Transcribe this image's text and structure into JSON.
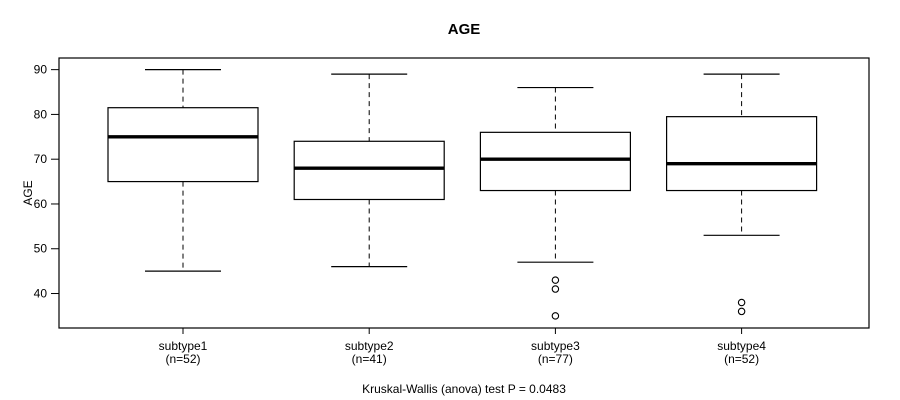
{
  "chart_data": {
    "type": "boxplot",
    "title": "AGE",
    "ylabel": "AGE",
    "xlabel": "",
    "caption": "Kruskal-Wallis (anova) test P = 0.0483",
    "ylim": [
      32.3,
      92.6
    ],
    "yticks": [
      40,
      50,
      60,
      70,
      80,
      90
    ],
    "grid": false,
    "legend": "none",
    "groups": [
      {
        "label": "subtype1",
        "n_label": "(n=52)",
        "whisker_low": 45,
        "q1": 65,
        "median": 75,
        "q3": 81.5,
        "whisker_high": 90,
        "outliers": []
      },
      {
        "label": "subtype2",
        "n_label": "(n=41)",
        "whisker_low": 46,
        "q1": 61,
        "median": 68,
        "q3": 74,
        "whisker_high": 89,
        "outliers": []
      },
      {
        "label": "subtype3",
        "n_label": "(n=77)",
        "whisker_low": 47,
        "q1": 63,
        "median": 70,
        "q3": 76,
        "whisker_high": 86,
        "outliers": [
          43,
          41,
          35
        ]
      },
      {
        "label": "subtype4",
        "n_label": "(n=52)",
        "whisker_low": 53,
        "q1": 63,
        "median": 69,
        "q3": 79.5,
        "whisker_high": 89,
        "outliers": [
          38,
          36
        ]
      }
    ],
    "colors": {
      "line": "#000000",
      "background": "#ffffff"
    }
  }
}
